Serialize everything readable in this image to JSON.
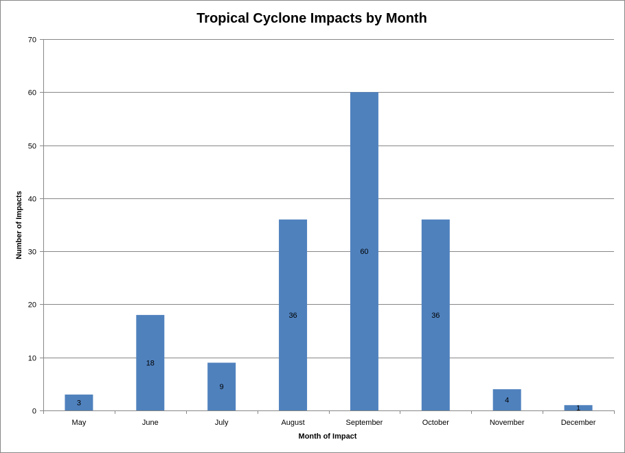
{
  "chart_data": {
    "type": "bar",
    "title": "Tropical Cyclone Impacts by Month",
    "xlabel": "Month of Impact",
    "ylabel": "Number of Impacts",
    "categories": [
      "May",
      "June",
      "July",
      "August",
      "September",
      "October",
      "November",
      "December"
    ],
    "values": [
      3,
      18,
      9,
      36,
      60,
      36,
      4,
      1
    ],
    "data_labels": [
      "3",
      "18",
      "9",
      "36",
      "60",
      "36",
      "4",
      "1"
    ],
    "ylim": [
      0,
      70
    ],
    "yticks": [
      0,
      10,
      20,
      30,
      40,
      50,
      60,
      70
    ],
    "ytick_labels": [
      "0",
      "10",
      "20",
      "30",
      "40",
      "50",
      "60",
      "70"
    ],
    "grid": true,
    "legend": "none",
    "colors": {
      "bar": "#4F81BD",
      "grid": "#868686",
      "axis": "#868686"
    }
  }
}
